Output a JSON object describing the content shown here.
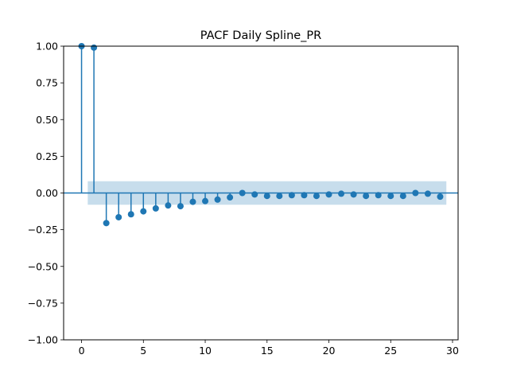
{
  "chart_data": {
    "type": "stem",
    "title": "PACF Daily Spline_PR",
    "xlabel": "",
    "ylabel": "",
    "xlim": [
      -1.45,
      30.45
    ],
    "ylim": [
      -1.0,
      1.0
    ],
    "xticks": [
      0,
      5,
      10,
      15,
      20,
      25,
      30
    ],
    "xtick_labels": [
      "0",
      "5",
      "10",
      "15",
      "20",
      "25",
      "30"
    ],
    "yticks": [
      1.0,
      0.75,
      0.5,
      0.25,
      0.0,
      -0.25,
      -0.5,
      -0.75,
      -1.0
    ],
    "ytick_labels": [
      "1.00",
      "0.75",
      "0.50",
      "0.25",
      "0.00",
      "−0.25",
      "−0.50",
      "−0.75",
      "−1.00"
    ],
    "grid": false,
    "series": [
      {
        "x": [
          0,
          1,
          2,
          3,
          4,
          5,
          6,
          7,
          8,
          9,
          10,
          11,
          12,
          13,
          14,
          15,
          16,
          17,
          18,
          19,
          20,
          21,
          22,
          23,
          24,
          25,
          26,
          27,
          28,
          29
        ],
        "values": [
          1.0,
          0.99,
          -0.205,
          -0.165,
          -0.145,
          -0.125,
          -0.105,
          -0.085,
          -0.09,
          -0.06,
          -0.055,
          -0.045,
          -0.03,
          0.0,
          -0.01,
          -0.02,
          -0.02,
          -0.015,
          -0.015,
          -0.02,
          -0.01,
          -0.005,
          -0.01,
          -0.02,
          -0.015,
          -0.02,
          -0.02,
          0.0,
          -0.005,
          -0.025
        ]
      }
    ],
    "confidence_band": {
      "x_start": 0.5,
      "x_end": 29.5,
      "lower": -0.08,
      "upper": 0.08
    },
    "colors": {
      "stem": "#1f77b4",
      "band": "#1f77b4",
      "band_opacity": 0.25,
      "axes": "#000000"
    }
  }
}
